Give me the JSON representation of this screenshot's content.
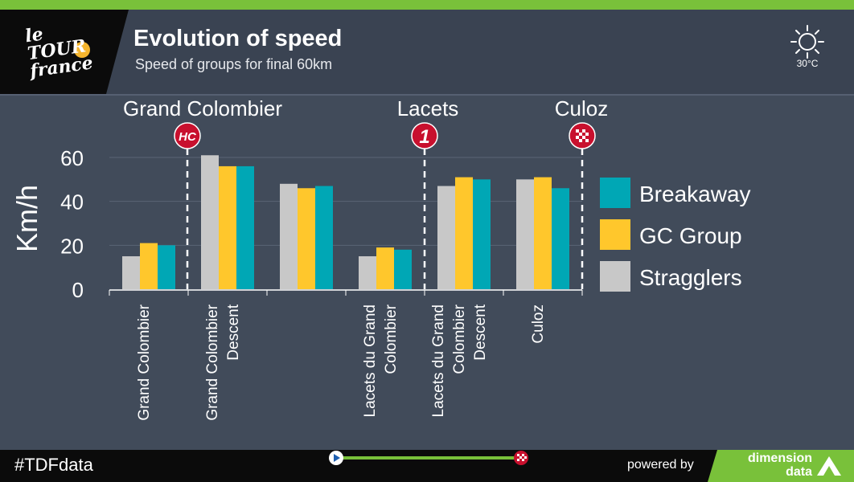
{
  "header": {
    "title": "Evolution of speed",
    "subtitle": "Speed of groups for final 60km",
    "temperature": "30°C",
    "weather_icon": "sun-icon",
    "logo_text": "le Tour de France"
  },
  "footer": {
    "hashtag": "#TDFdata",
    "powered_by": "powered by",
    "brand_line1": "dimension",
    "brand_line2": "data"
  },
  "colors": {
    "breakaway": "#00a7b5",
    "gc_group": "#ffc72c",
    "stragglers": "#c8c8c8",
    "accent_green": "#79c13a",
    "marker_red": "#c8102e"
  },
  "chart_data": {
    "type": "bar",
    "ylabel": "Km/h",
    "ylim": [
      0,
      65
    ],
    "yticks": [
      "0",
      "20",
      "40",
      "60"
    ],
    "categories": [
      "Grand Colombier",
      "Grand Colombier Descent",
      "",
      "Lacets du Grand Colombier",
      "Lacets du Grand Colombier Descent",
      "Culoz"
    ],
    "series": [
      {
        "name": "Stragglers",
        "values": [
          15,
          61,
          48,
          15,
          47,
          50
        ]
      },
      {
        "name": "GC Group",
        "values": [
          21,
          56,
          46,
          19,
          51,
          51
        ]
      },
      {
        "name": "Breakaway",
        "values": [
          20,
          56,
          47,
          18,
          50,
          46
        ]
      }
    ],
    "legend": [
      "Breakaway",
      "GC Group",
      "Stragglers"
    ],
    "legend_position": "right",
    "markers": [
      {
        "label": "Grand Colombier",
        "badge": "HC"
      },
      {
        "label": "Lacets",
        "badge": "1"
      },
      {
        "label": "Culoz",
        "badge": "finish"
      }
    ]
  }
}
